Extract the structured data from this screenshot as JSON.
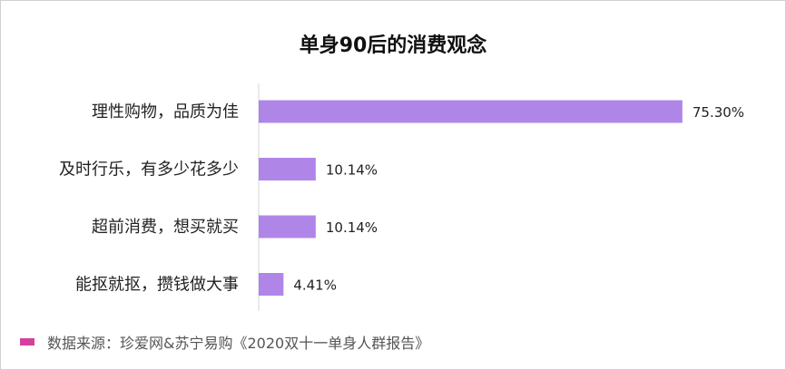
{
  "chart_data": {
    "type": "bar",
    "orientation": "horizontal",
    "title": "单身90后的消费观念",
    "categories": [
      "理性购物，品质为佳",
      "及时行乐，有多少花多少",
      "超前消费，想买就买",
      "能抠就抠，攒钱做大事"
    ],
    "values": [
      75.3,
      10.14,
      10.14,
      4.41
    ],
    "value_labels": [
      "75.30%",
      "10.14%",
      "10.14%",
      "4.41%"
    ],
    "xlim": [
      0,
      100
    ],
    "grid": false,
    "legend": "none",
    "colors": {
      "bar": "#b085e8",
      "axis": "#d4d4d4"
    }
  },
  "source": {
    "text": "数据来源：珍爱网&苏宁易购《2020双十一单身人群报告》",
    "marker_color": "#d63fa0"
  }
}
